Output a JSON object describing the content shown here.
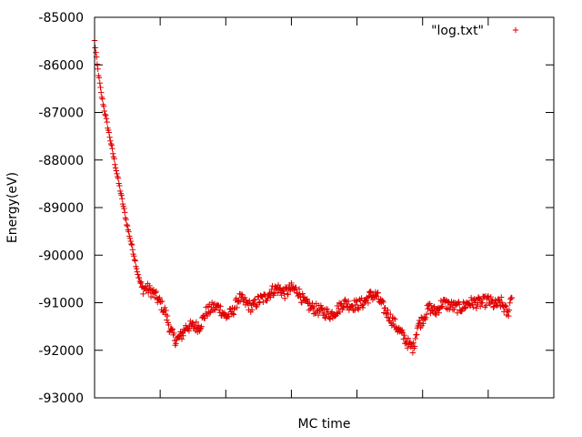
{
  "chart_data": {
    "type": "scatter",
    "title": "",
    "xlabel": "MC time",
    "ylabel": "Energy(eV)",
    "xlim": [
      0,
      350
    ],
    "ylim": [
      -93000,
      -85000
    ],
    "yticks": [
      -93000,
      -92000,
      -91000,
      -90000,
      -89000,
      -88000,
      -87000,
      -86000,
      -85000
    ],
    "yticklabels": [
      "-93000",
      "-92000",
      "-91000",
      "-90000",
      "-89000",
      "-88000",
      "-87000",
      "-86000",
      "-85000"
    ],
    "xticks": [
      50,
      100,
      150,
      200,
      250,
      300
    ],
    "xticklabels_shown": false,
    "grid": false,
    "legend": {
      "position": "top-right",
      "entries": [
        "\"log.txt\""
      ]
    },
    "marker": "plus",
    "series": [
      {
        "name": "\"log.txt\"",
        "color": "#e00000",
        "keypoints": [
          [
            0,
            -85500
          ],
          [
            2,
            -86000
          ],
          [
            5,
            -86600
          ],
          [
            10,
            -87300
          ],
          [
            15,
            -88000
          ],
          [
            20,
            -88700
          ],
          [
            25,
            -89400
          ],
          [
            30,
            -90000
          ],
          [
            33,
            -90400
          ],
          [
            36,
            -90700
          ],
          [
            40,
            -90700
          ],
          [
            45,
            -90800
          ],
          [
            50,
            -91000
          ],
          [
            54,
            -91200
          ],
          [
            58,
            -91600
          ],
          [
            62,
            -91800
          ],
          [
            66,
            -91700
          ],
          [
            70,
            -91500
          ],
          [
            75,
            -91500
          ],
          [
            80,
            -91500
          ],
          [
            85,
            -91200
          ],
          [
            90,
            -91100
          ],
          [
            95,
            -91100
          ],
          [
            100,
            -91300
          ],
          [
            105,
            -91200
          ],
          [
            110,
            -90900
          ],
          [
            115,
            -91000
          ],
          [
            120,
            -91100
          ],
          [
            125,
            -90950
          ],
          [
            130,
            -90900
          ],
          [
            135,
            -90750
          ],
          [
            140,
            -90700
          ],
          [
            145,
            -90800
          ],
          [
            150,
            -90700
          ],
          [
            155,
            -90750
          ],
          [
            160,
            -91000
          ],
          [
            165,
            -91100
          ],
          [
            170,
            -91150
          ],
          [
            175,
            -91200
          ],
          [
            180,
            -91250
          ],
          [
            185,
            -91150
          ],
          [
            190,
            -91000
          ],
          [
            195,
            -91050
          ],
          [
            200,
            -91050
          ],
          [
            205,
            -91000
          ],
          [
            210,
            -90850
          ],
          [
            215,
            -90850
          ],
          [
            220,
            -91100
          ],
          [
            225,
            -91300
          ],
          [
            230,
            -91500
          ],
          [
            235,
            -91700
          ],
          [
            240,
            -91900
          ],
          [
            243,
            -91950
          ],
          [
            246,
            -91500
          ],
          [
            250,
            -91350
          ],
          [
            255,
            -91100
          ],
          [
            260,
            -91200
          ],
          [
            265,
            -91000
          ],
          [
            270,
            -91050
          ],
          [
            275,
            -91100
          ],
          [
            280,
            -91100
          ],
          [
            285,
            -91000
          ],
          [
            290,
            -91000
          ],
          [
            295,
            -91000
          ],
          [
            300,
            -90950
          ],
          [
            305,
            -91050
          ],
          [
            310,
            -91000
          ],
          [
            315,
            -91250
          ],
          [
            318,
            -90800
          ]
        ]
      }
    ]
  }
}
